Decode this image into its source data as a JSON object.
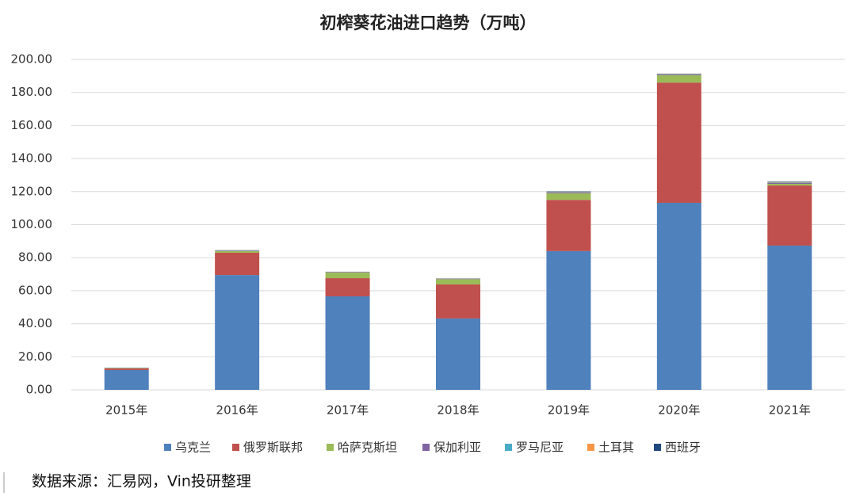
{
  "chart_data": {
    "type": "stacked_bar",
    "title": "初榨葵花油进口趋势（万吨）",
    "categories": [
      "2015年",
      "2016年",
      "2017年",
      "2018年",
      "2019年",
      "2020年",
      "2021年"
    ],
    "series": [
      {
        "name": "乌克兰",
        "color": "#4f81bd",
        "values": [
          12.0,
          69.5,
          56.6,
          43.2,
          84.0,
          113.2,
          87.3
        ]
      },
      {
        "name": "俄罗斯联邦",
        "color": "#c0504d",
        "values": [
          1.0,
          13.5,
          11.0,
          20.6,
          31.0,
          72.8,
          36.4
        ]
      },
      {
        "name": "哈萨克斯坦",
        "color": "#9bbb59",
        "values": [
          0.3,
          1.0,
          3.4,
          3.2,
          4.0,
          4.4,
          1.0
        ]
      },
      {
        "name": "保加利亚",
        "color": "#8064a2",
        "values": [
          0.1,
          0.3,
          0.2,
          0.2,
          0.4,
          0.4,
          0.5
        ]
      },
      {
        "name": "罗马尼亚",
        "color": "#4bacc6",
        "values": [
          0.1,
          0.1,
          0.1,
          0.1,
          0.2,
          0.2,
          0.3
        ]
      },
      {
        "name": "土耳其",
        "color": "#f79646",
        "values": [
          0.0,
          0.1,
          0.1,
          0.1,
          0.2,
          0.2,
          0.3
        ]
      },
      {
        "name": "西班牙",
        "color": "#1f497d",
        "values": [
          0.0,
          0.1,
          0.1,
          0.1,
          0.3,
          0.2,
          0.3
        ]
      }
    ],
    "ylim": [
      0,
      200
    ],
    "yticks": [
      {
        "value": 0,
        "label": "0.00"
      },
      {
        "value": 20,
        "label": "20.00"
      },
      {
        "value": 40,
        "label": "40.00"
      },
      {
        "value": 60,
        "label": "60.00"
      },
      {
        "value": 80,
        "label": "80.00"
      },
      {
        "value": 100,
        "label": "100.00"
      },
      {
        "value": 120,
        "label": "120.00"
      },
      {
        "value": 140,
        "label": "140.00"
      },
      {
        "value": 160,
        "label": "160.00"
      },
      {
        "value": 180,
        "label": "180.00"
      },
      {
        "value": 200,
        "label": "200.00"
      }
    ],
    "grid": true,
    "legend": "bottom",
    "source": "数据来源：汇易网，Vin投研整理"
  }
}
